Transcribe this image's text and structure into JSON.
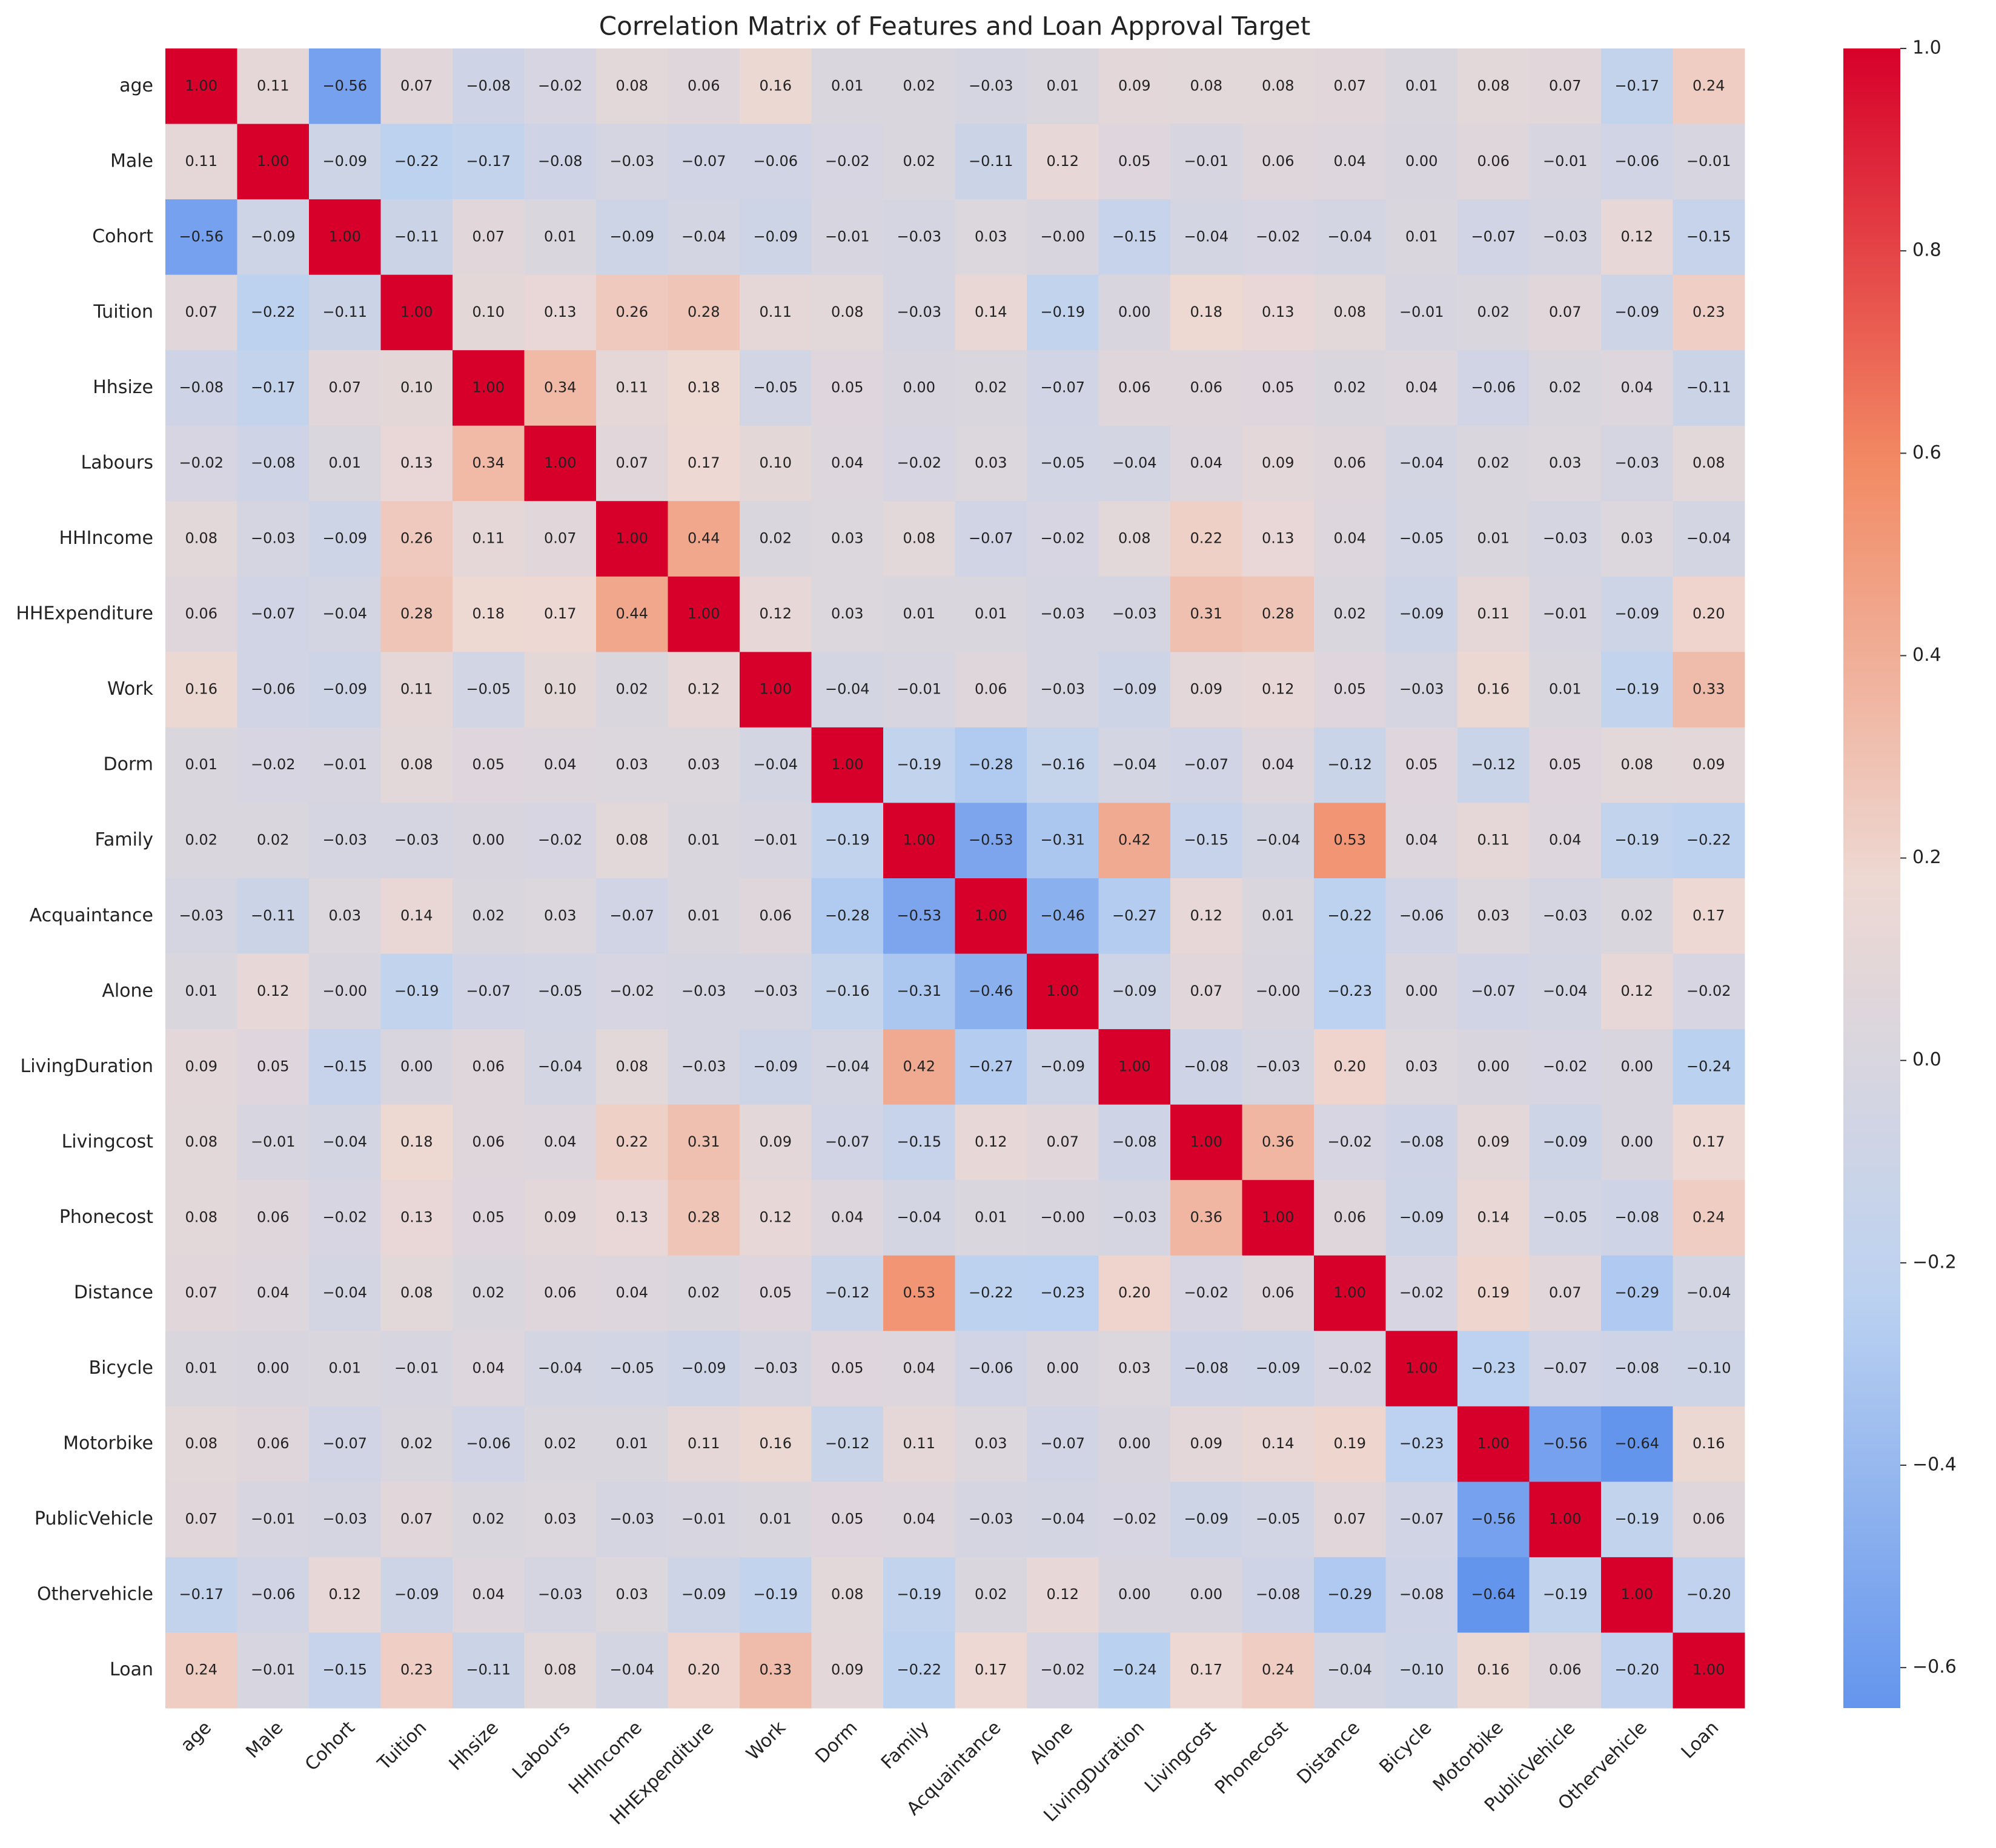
{
  "chart_data": {
    "type": "heatmap",
    "title": "Correlation Matrix of Features and Loan Approval Target",
    "x_categories": [
      "age",
      "Male",
      "Cohort",
      "Tuition",
      "Hhsize",
      "Labours",
      "HHIncome",
      "HHExpenditure",
      "Work",
      "Dorm",
      "Family",
      "Acquaintance",
      "Alone",
      "LivingDuration",
      "Livingcost",
      "Phonecost",
      "Distance",
      "Bicycle",
      "Motorbike",
      "PublicVehicle",
      "Othervehicle",
      "Loan"
    ],
    "y_categories": [
      "age",
      "Male",
      "Cohort",
      "Tuition",
      "Hhsize",
      "Labours",
      "HHIncome",
      "HHExpenditure",
      "Work",
      "Dorm",
      "Family",
      "Acquaintance",
      "Alone",
      "LivingDuration",
      "Livingcost",
      "Phonecost",
      "Distance",
      "Bicycle",
      "Motorbike",
      "PublicVehicle",
      "Othervehicle",
      "Loan"
    ],
    "values": [
      [
        1.0,
        0.11,
        -0.56,
        0.07,
        -0.08,
        -0.02,
        0.08,
        0.06,
        0.16,
        0.01,
        0.02,
        -0.03,
        0.01,
        0.09,
        0.08,
        0.08,
        0.07,
        0.01,
        0.08,
        0.07,
        -0.17,
        0.24
      ],
      [
        0.11,
        1.0,
        -0.09,
        -0.22,
        -0.17,
        -0.08,
        -0.03,
        -0.07,
        -0.06,
        -0.02,
        0.02,
        -0.11,
        0.12,
        0.05,
        -0.01,
        0.06,
        0.04,
        0.0,
        0.06,
        -0.01,
        -0.06,
        -0.01
      ],
      [
        -0.56,
        -0.09,
        1.0,
        -0.11,
        0.07,
        0.01,
        -0.09,
        -0.04,
        -0.09,
        -0.01,
        -0.03,
        0.03,
        -0.0,
        -0.15,
        -0.04,
        -0.02,
        -0.04,
        0.01,
        -0.07,
        -0.03,
        0.12,
        -0.15
      ],
      [
        0.07,
        -0.22,
        -0.11,
        1.0,
        0.1,
        0.13,
        0.26,
        0.28,
        0.11,
        0.08,
        -0.03,
        0.14,
        -0.19,
        0.0,
        0.18,
        0.13,
        0.08,
        -0.01,
        0.02,
        0.07,
        -0.09,
        0.23
      ],
      [
        -0.08,
        -0.17,
        0.07,
        0.1,
        1.0,
        0.34,
        0.11,
        0.18,
        -0.05,
        0.05,
        0.0,
        0.02,
        -0.07,
        0.06,
        0.06,
        0.05,
        0.02,
        0.04,
        -0.06,
        0.02,
        0.04,
        -0.11
      ],
      [
        -0.02,
        -0.08,
        0.01,
        0.13,
        0.34,
        1.0,
        0.07,
        0.17,
        0.1,
        0.04,
        -0.02,
        0.03,
        -0.05,
        -0.04,
        0.04,
        0.09,
        0.06,
        -0.04,
        0.02,
        0.03,
        -0.03,
        0.08
      ],
      [
        0.08,
        -0.03,
        -0.09,
        0.26,
        0.11,
        0.07,
        1.0,
        0.44,
        0.02,
        0.03,
        0.08,
        -0.07,
        -0.02,
        0.08,
        0.22,
        0.13,
        0.04,
        -0.05,
        0.01,
        -0.03,
        0.03,
        -0.04
      ],
      [
        0.06,
        -0.07,
        -0.04,
        0.28,
        0.18,
        0.17,
        0.44,
        1.0,
        0.12,
        0.03,
        0.01,
        0.01,
        -0.03,
        -0.03,
        0.31,
        0.28,
        0.02,
        -0.09,
        0.11,
        -0.01,
        -0.09,
        0.2
      ],
      [
        0.16,
        -0.06,
        -0.09,
        0.11,
        -0.05,
        0.1,
        0.02,
        0.12,
        1.0,
        -0.04,
        -0.01,
        0.06,
        -0.03,
        -0.09,
        0.09,
        0.12,
        0.05,
        -0.03,
        0.16,
        0.01,
        -0.19,
        0.33
      ],
      [
        0.01,
        -0.02,
        -0.01,
        0.08,
        0.05,
        0.04,
        0.03,
        0.03,
        -0.04,
        1.0,
        -0.19,
        -0.28,
        -0.16,
        -0.04,
        -0.07,
        0.04,
        -0.12,
        0.05,
        -0.12,
        0.05,
        0.08,
        0.09
      ],
      [
        0.02,
        0.02,
        -0.03,
        -0.03,
        0.0,
        -0.02,
        0.08,
        0.01,
        -0.01,
        -0.19,
        1.0,
        -0.53,
        -0.31,
        0.42,
        -0.15,
        -0.04,
        0.53,
        0.04,
        0.11,
        0.04,
        -0.19,
        -0.22
      ],
      [
        -0.03,
        -0.11,
        0.03,
        0.14,
        0.02,
        0.03,
        -0.07,
        0.01,
        0.06,
        -0.28,
        -0.53,
        1.0,
        -0.46,
        -0.27,
        0.12,
        0.01,
        -0.22,
        -0.06,
        0.03,
        -0.03,
        0.02,
        0.17
      ],
      [
        0.01,
        0.12,
        -0.0,
        -0.19,
        -0.07,
        -0.05,
        -0.02,
        -0.03,
        -0.03,
        -0.16,
        -0.31,
        -0.46,
        1.0,
        -0.09,
        0.07,
        -0.0,
        -0.23,
        0.0,
        -0.07,
        -0.04,
        0.12,
        -0.02
      ],
      [
        0.09,
        0.05,
        -0.15,
        0.0,
        0.06,
        -0.04,
        0.08,
        -0.03,
        -0.09,
        -0.04,
        0.42,
        -0.27,
        -0.09,
        1.0,
        -0.08,
        -0.03,
        0.2,
        0.03,
        0.0,
        -0.02,
        0.0,
        -0.24
      ],
      [
        0.08,
        -0.01,
        -0.04,
        0.18,
        0.06,
        0.04,
        0.22,
        0.31,
        0.09,
        -0.07,
        -0.15,
        0.12,
        0.07,
        -0.08,
        1.0,
        0.36,
        -0.02,
        -0.08,
        0.09,
        -0.09,
        0.0,
        0.17
      ],
      [
        0.08,
        0.06,
        -0.02,
        0.13,
        0.05,
        0.09,
        0.13,
        0.28,
        0.12,
        0.04,
        -0.04,
        0.01,
        -0.0,
        -0.03,
        0.36,
        1.0,
        0.06,
        -0.09,
        0.14,
        -0.05,
        -0.08,
        0.24
      ],
      [
        0.07,
        0.04,
        -0.04,
        0.08,
        0.02,
        0.06,
        0.04,
        0.02,
        0.05,
        -0.12,
        0.53,
        -0.22,
        -0.23,
        0.2,
        -0.02,
        0.06,
        1.0,
        -0.02,
        0.19,
        0.07,
        -0.29,
        -0.04
      ],
      [
        0.01,
        0.0,
        0.01,
        -0.01,
        0.04,
        -0.04,
        -0.05,
        -0.09,
        -0.03,
        0.05,
        0.04,
        -0.06,
        0.0,
        0.03,
        -0.08,
        -0.09,
        -0.02,
        1.0,
        -0.23,
        -0.07,
        -0.08,
        -0.1
      ],
      [
        0.08,
        0.06,
        -0.07,
        0.02,
        -0.06,
        0.02,
        0.01,
        0.11,
        0.16,
        -0.12,
        0.11,
        0.03,
        -0.07,
        0.0,
        0.09,
        0.14,
        0.19,
        -0.23,
        1.0,
        -0.56,
        -0.64,
        0.16
      ],
      [
        0.07,
        -0.01,
        -0.03,
        0.07,
        0.02,
        0.03,
        -0.03,
        -0.01,
        0.01,
        0.05,
        0.04,
        -0.03,
        -0.04,
        -0.02,
        -0.09,
        -0.05,
        0.07,
        -0.07,
        -0.56,
        1.0,
        -0.19,
        0.06
      ],
      [
        -0.17,
        -0.06,
        0.12,
        -0.09,
        0.04,
        -0.03,
        0.03,
        -0.09,
        -0.19,
        0.08,
        -0.19,
        0.02,
        0.12,
        0.0,
        0.0,
        -0.08,
        -0.29,
        -0.08,
        -0.64,
        -0.19,
        1.0,
        -0.2
      ],
      [
        0.24,
        -0.01,
        -0.15,
        0.23,
        -0.11,
        0.08,
        -0.04,
        0.2,
        0.33,
        0.09,
        -0.22,
        0.17,
        -0.02,
        -0.24,
        0.17,
        0.24,
        -0.04,
        -0.1,
        0.16,
        0.06,
        -0.2,
        1.0
      ]
    ],
    "value_labels": [
      [
        "1.00",
        "0.11",
        "−0.56",
        "0.07",
        "−0.08",
        "−0.02",
        "0.08",
        "0.06",
        "0.16",
        "0.01",
        "0.02",
        "−0.03",
        "0.01",
        "0.09",
        "0.08",
        "0.08",
        "0.07",
        "0.01",
        "0.08",
        "0.07",
        "−0.17",
        "0.24"
      ],
      [
        "0.11",
        "1.00",
        "−0.09",
        "−0.22",
        "−0.17",
        "−0.08",
        "−0.03",
        "−0.07",
        "−0.06",
        "−0.02",
        "0.02",
        "−0.11",
        "0.12",
        "0.05",
        "−0.01",
        "0.06",
        "0.04",
        "0.00",
        "0.06",
        "−0.01",
        "−0.06",
        "−0.01"
      ],
      [
        "−0.56",
        "−0.09",
        "1.00",
        "−0.11",
        "0.07",
        "0.01",
        "−0.09",
        "−0.04",
        "−0.09",
        "−0.01",
        "−0.03",
        "0.03",
        "−0.00",
        "−0.15",
        "−0.04",
        "−0.02",
        "−0.04",
        "0.01",
        "−0.07",
        "−0.03",
        "0.12",
        "−0.15"
      ],
      [
        "0.07",
        "−0.22",
        "−0.11",
        "1.00",
        "0.10",
        "0.13",
        "0.26",
        "0.28",
        "0.11",
        "0.08",
        "−0.03",
        "0.14",
        "−0.19",
        "0.00",
        "0.18",
        "0.13",
        "0.08",
        "−0.01",
        "0.02",
        "0.07",
        "−0.09",
        "0.23"
      ],
      [
        "−0.08",
        "−0.17",
        "0.07",
        "0.10",
        "1.00",
        "0.34",
        "0.11",
        "0.18",
        "−0.05",
        "0.05",
        "0.00",
        "0.02",
        "−0.07",
        "0.06",
        "0.06",
        "0.05",
        "0.02",
        "0.04",
        "−0.06",
        "0.02",
        "0.04",
        "−0.11"
      ],
      [
        "−0.02",
        "−0.08",
        "0.01",
        "0.13",
        "0.34",
        "1.00",
        "0.07",
        "0.17",
        "0.10",
        "0.04",
        "−0.02",
        "0.03",
        "−0.05",
        "−0.04",
        "0.04",
        "0.09",
        "0.06",
        "−0.04",
        "0.02",
        "0.03",
        "−0.03",
        "0.08"
      ],
      [
        "0.08",
        "−0.03",
        "−0.09",
        "0.26",
        "0.11",
        "0.07",
        "1.00",
        "0.44",
        "0.02",
        "0.03",
        "0.08",
        "−0.07",
        "−0.02",
        "0.08",
        "0.22",
        "0.13",
        "0.04",
        "−0.05",
        "0.01",
        "−0.03",
        "0.03",
        "−0.04"
      ],
      [
        "0.06",
        "−0.07",
        "−0.04",
        "0.28",
        "0.18",
        "0.17",
        "0.44",
        "1.00",
        "0.12",
        "0.03",
        "0.01",
        "0.01",
        "−0.03",
        "−0.03",
        "0.31",
        "0.28",
        "0.02",
        "−0.09",
        "0.11",
        "−0.01",
        "−0.09",
        "0.20"
      ],
      [
        "0.16",
        "−0.06",
        "−0.09",
        "0.11",
        "−0.05",
        "0.10",
        "0.02",
        "0.12",
        "1.00",
        "−0.04",
        "−0.01",
        "0.06",
        "−0.03",
        "−0.09",
        "0.09",
        "0.12",
        "0.05",
        "−0.03",
        "0.16",
        "0.01",
        "−0.19",
        "0.33"
      ],
      [
        "0.01",
        "−0.02",
        "−0.01",
        "0.08",
        "0.05",
        "0.04",
        "0.03",
        "0.03",
        "−0.04",
        "1.00",
        "−0.19",
        "−0.28",
        "−0.16",
        "−0.04",
        "−0.07",
        "0.04",
        "−0.12",
        "0.05",
        "−0.12",
        "0.05",
        "0.08",
        "0.09"
      ],
      [
        "0.02",
        "0.02",
        "−0.03",
        "−0.03",
        "0.00",
        "−0.02",
        "0.08",
        "0.01",
        "−0.01",
        "−0.19",
        "1.00",
        "−0.53",
        "−0.31",
        "0.42",
        "−0.15",
        "−0.04",
        "0.53",
        "0.04",
        "0.11",
        "0.04",
        "−0.19",
        "−0.22"
      ],
      [
        "−0.03",
        "−0.11",
        "0.03",
        "0.14",
        "0.02",
        "0.03",
        "−0.07",
        "0.01",
        "0.06",
        "−0.28",
        "−0.53",
        "1.00",
        "−0.46",
        "−0.27",
        "0.12",
        "0.01",
        "−0.22",
        "−0.06",
        "0.03",
        "−0.03",
        "0.02",
        "0.17"
      ],
      [
        "0.01",
        "0.12",
        "−0.00",
        "−0.19",
        "−0.07",
        "−0.05",
        "−0.02",
        "−0.03",
        "−0.03",
        "−0.16",
        "−0.31",
        "−0.46",
        "1.00",
        "−0.09",
        "0.07",
        "−0.00",
        "−0.23",
        "0.00",
        "−0.07",
        "−0.04",
        "0.12",
        "−0.02"
      ],
      [
        "0.09",
        "0.05",
        "−0.15",
        "0.00",
        "0.06",
        "−0.04",
        "0.08",
        "−0.03",
        "−0.09",
        "−0.04",
        "0.42",
        "−0.27",
        "−0.09",
        "1.00",
        "−0.08",
        "−0.03",
        "0.20",
        "0.03",
        "0.00",
        "−0.02",
        "0.00",
        "−0.24"
      ],
      [
        "0.08",
        "−0.01",
        "−0.04",
        "0.18",
        "0.06",
        "0.04",
        "0.22",
        "0.31",
        "0.09",
        "−0.07",
        "−0.15",
        "0.12",
        "0.07",
        "−0.08",
        "1.00",
        "0.36",
        "−0.02",
        "−0.08",
        "0.09",
        "−0.09",
        "0.00",
        "0.17"
      ],
      [
        "0.08",
        "0.06",
        "−0.02",
        "0.13",
        "0.05",
        "0.09",
        "0.13",
        "0.28",
        "0.12",
        "0.04",
        "−0.04",
        "0.01",
        "−0.00",
        "−0.03",
        "0.36",
        "1.00",
        "0.06",
        "−0.09",
        "0.14",
        "−0.05",
        "−0.08",
        "0.24"
      ],
      [
        "0.07",
        "0.04",
        "−0.04",
        "0.08",
        "0.02",
        "0.06",
        "0.04",
        "0.02",
        "0.05",
        "−0.12",
        "0.53",
        "−0.22",
        "−0.23",
        "0.20",
        "−0.02",
        "0.06",
        "1.00",
        "−0.02",
        "0.19",
        "0.07",
        "−0.29",
        "−0.04"
      ],
      [
        "0.01",
        "0.00",
        "0.01",
        "−0.01",
        "0.04",
        "−0.04",
        "−0.05",
        "−0.09",
        "−0.03",
        "0.05",
        "0.04",
        "−0.06",
        "0.00",
        "0.03",
        "−0.08",
        "−0.09",
        "−0.02",
        "1.00",
        "−0.23",
        "−0.07",
        "−0.08",
        "−0.10"
      ],
      [
        "0.08",
        "0.06",
        "−0.07",
        "0.02",
        "−0.06",
        "0.02",
        "0.01",
        "0.11",
        "0.16",
        "−0.12",
        "0.11",
        "0.03",
        "−0.07",
        "0.00",
        "0.09",
        "0.14",
        "0.19",
        "−0.23",
        "1.00",
        "−0.56",
        "−0.64",
        "0.16"
      ],
      [
        "0.07",
        "−0.01",
        "−0.03",
        "0.07",
        "0.02",
        "0.03",
        "−0.03",
        "−0.01",
        "0.01",
        "0.05",
        "0.04",
        "−0.03",
        "−0.04",
        "−0.02",
        "−0.09",
        "−0.05",
        "0.07",
        "−0.07",
        "−0.56",
        "1.00",
        "−0.19",
        "0.06"
      ],
      [
        "−0.17",
        "−0.06",
        "0.12",
        "−0.09",
        "0.04",
        "−0.03",
        "0.03",
        "−0.09",
        "−0.19",
        "0.08",
        "−0.19",
        "0.02",
        "0.12",
        "0.00",
        "0.00",
        "−0.08",
        "−0.29",
        "−0.08",
        "−0.64",
        "−0.19",
        "1.00",
        "−0.20"
      ],
      [
        "0.24",
        "−0.01",
        "−0.15",
        "0.23",
        "−0.11",
        "0.08",
        "−0.04",
        "0.20",
        "0.33",
        "0.09",
        "−0.22",
        "0.17",
        "−0.02",
        "−0.24",
        "0.17",
        "0.24",
        "−0.04",
        "−0.10",
        "0.16",
        "0.06",
        "−0.20",
        "1.00"
      ]
    ],
    "clim": [
      -0.64,
      1.0
    ],
    "colorscale": [
      "#6495ed",
      "#bcd2f0",
      "#eed8d2",
      "#f28a64",
      "#d7002a"
    ],
    "cticks": [
      {
        "value": 1.0,
        "label": "1.0"
      },
      {
        "value": 0.8,
        "label": "0.8"
      },
      {
        "value": 0.6,
        "label": "0.6"
      },
      {
        "value": 0.4,
        "label": "0.4"
      },
      {
        "value": 0.2,
        "label": "0.2"
      },
      {
        "value": 0.0,
        "label": "0.0"
      },
      {
        "value": -0.2,
        "label": "−0.2"
      },
      {
        "value": -0.4,
        "label": "−0.4"
      },
      {
        "value": -0.6,
        "label": "−0.6"
      }
    ]
  }
}
